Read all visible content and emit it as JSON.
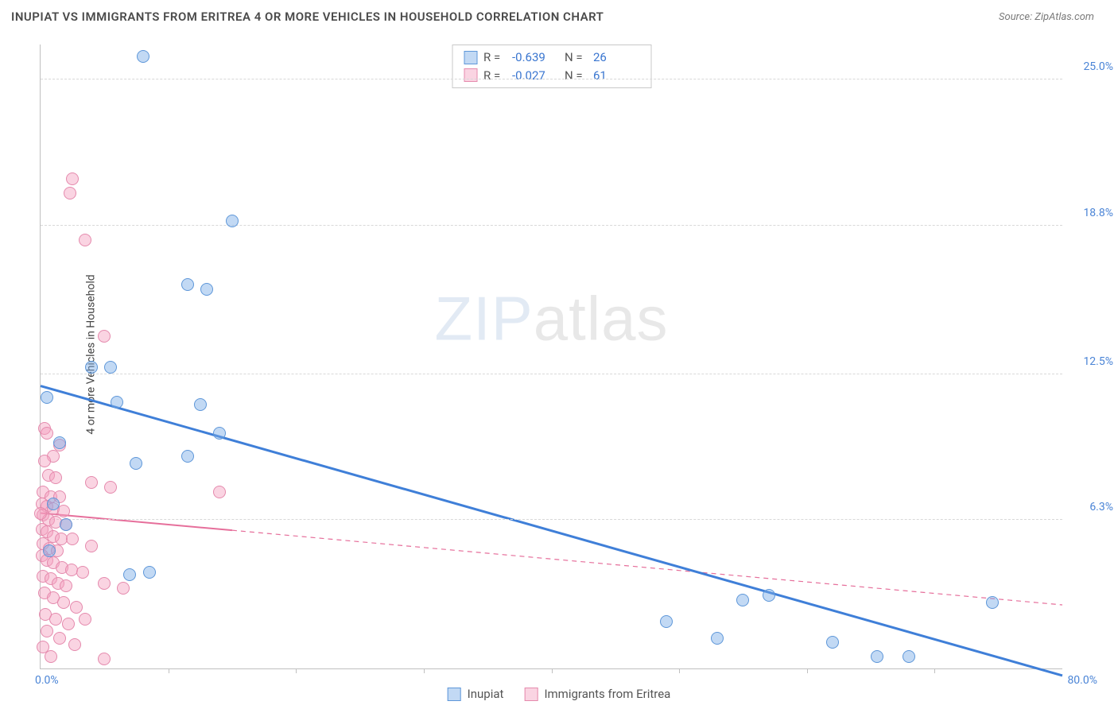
{
  "header": {
    "title": "INUPIAT VS IMMIGRANTS FROM ERITREA 4 OR MORE VEHICLES IN HOUSEHOLD CORRELATION CHART",
    "source": "Source: ZipAtlas.com"
  },
  "watermark": {
    "left": "ZIP",
    "right": "atlas"
  },
  "chart": {
    "type": "scatter",
    "ylabel": "4 or more Vehicles in Household",
    "xlim": [
      0,
      80
    ],
    "ylim": [
      0,
      26.5
    ],
    "x_ticks_label": {
      "min": "0.0%",
      "max": "80.0%"
    },
    "y_ticks": [
      {
        "v": 6.3,
        "label": "6.3%"
      },
      {
        "v": 12.5,
        "label": "12.5%"
      },
      {
        "v": 18.8,
        "label": "18.8%"
      },
      {
        "v": 25.0,
        "label": "25.0%"
      }
    ],
    "x_tick_marks": [
      10,
      20,
      30,
      40,
      50,
      60,
      70
    ],
    "grid_color": "#d8d8d8",
    "background_color": "#ffffff",
    "tick_label_color": "#4a84d6",
    "point_radius": 8,
    "series": {
      "blue": {
        "label": "Inupiat",
        "fill": "rgba(120,170,230,0.45)",
        "stroke": "#5e97d9",
        "R": "-0.639",
        "N": "26",
        "trend": {
          "x1": 0,
          "y1": 12.0,
          "x2": 80,
          "y2": -0.3,
          "solid_until_x": 80,
          "color": "#3f7fd8",
          "width": 3
        },
        "points": [
          {
            "x": 8.0,
            "y": 26.0
          },
          {
            "x": 15.0,
            "y": 19.0
          },
          {
            "x": 11.5,
            "y": 16.3
          },
          {
            "x": 13.0,
            "y": 16.1
          },
          {
            "x": 4.0,
            "y": 12.8
          },
          {
            "x": 5.5,
            "y": 12.8
          },
          {
            "x": 0.5,
            "y": 11.5
          },
          {
            "x": 6.0,
            "y": 11.3
          },
          {
            "x": 12.5,
            "y": 11.2
          },
          {
            "x": 14.0,
            "y": 10.0
          },
          {
            "x": 11.5,
            "y": 9.0
          },
          {
            "x": 7.5,
            "y": 8.7
          },
          {
            "x": 1.0,
            "y": 7.0
          },
          {
            "x": 2.0,
            "y": 6.1
          },
          {
            "x": 0.7,
            "y": 5.0
          },
          {
            "x": 7.0,
            "y": 4.0
          },
          {
            "x": 8.5,
            "y": 4.1
          },
          {
            "x": 49.0,
            "y": 2.0
          },
          {
            "x": 53.0,
            "y": 1.3
          },
          {
            "x": 55.0,
            "y": 2.9
          },
          {
            "x": 57.0,
            "y": 3.1
          },
          {
            "x": 62.0,
            "y": 1.1
          },
          {
            "x": 65.5,
            "y": 0.5
          },
          {
            "x": 68.0,
            "y": 0.5
          },
          {
            "x": 74.5,
            "y": 2.8
          },
          {
            "x": 1.5,
            "y": 9.6
          }
        ]
      },
      "pink": {
        "label": "Immigrants from Eritrea",
        "fill": "rgba(245,160,190,0.45)",
        "stroke": "#e58aad",
        "R": "-0.027",
        "N": "61",
        "trend": {
          "x1": 0,
          "y1": 6.6,
          "x2": 80,
          "y2": 2.7,
          "solid_until_x": 15,
          "color": "#e66f9b",
          "width": 2
        },
        "points": [
          {
            "x": 2.5,
            "y": 20.8
          },
          {
            "x": 2.3,
            "y": 20.2
          },
          {
            "x": 3.5,
            "y": 18.2
          },
          {
            "x": 5.0,
            "y": 14.1
          },
          {
            "x": 0.3,
            "y": 10.2
          },
          {
            "x": 0.5,
            "y": 10.0
          },
          {
            "x": 1.5,
            "y": 9.5
          },
          {
            "x": 1.0,
            "y": 9.0
          },
          {
            "x": 0.3,
            "y": 8.8
          },
          {
            "x": 0.6,
            "y": 8.2
          },
          {
            "x": 1.2,
            "y": 8.1
          },
          {
            "x": 4.0,
            "y": 7.9
          },
          {
            "x": 5.5,
            "y": 7.7
          },
          {
            "x": 0.2,
            "y": 7.5
          },
          {
            "x": 0.8,
            "y": 7.3
          },
          {
            "x": 1.5,
            "y": 7.3
          },
          {
            "x": 14.0,
            "y": 7.5
          },
          {
            "x": 0.1,
            "y": 7.0
          },
          {
            "x": 0.5,
            "y": 6.9
          },
          {
            "x": 1.0,
            "y": 6.8
          },
          {
            "x": 1.8,
            "y": 6.7
          },
          {
            "x": 0.2,
            "y": 6.5
          },
          {
            "x": 0.6,
            "y": 6.3
          },
          {
            "x": 1.2,
            "y": 6.2
          },
          {
            "x": 2.0,
            "y": 6.1
          },
          {
            "x": 0.1,
            "y": 5.9
          },
          {
            "x": 0.5,
            "y": 5.8
          },
          {
            "x": 1.0,
            "y": 5.6
          },
          {
            "x": 1.6,
            "y": 5.5
          },
          {
            "x": 2.5,
            "y": 5.5
          },
          {
            "x": 0.2,
            "y": 5.3
          },
          {
            "x": 0.7,
            "y": 5.1
          },
          {
            "x": 1.3,
            "y": 5.0
          },
          {
            "x": 0.1,
            "y": 4.8
          },
          {
            "x": 0.5,
            "y": 4.6
          },
          {
            "x": 1.0,
            "y": 4.5
          },
          {
            "x": 1.7,
            "y": 4.3
          },
          {
            "x": 2.4,
            "y": 4.2
          },
          {
            "x": 3.3,
            "y": 4.1
          },
          {
            "x": 0.2,
            "y": 3.9
          },
          {
            "x": 0.8,
            "y": 3.8
          },
          {
            "x": 1.4,
            "y": 3.6
          },
          {
            "x": 2.0,
            "y": 3.5
          },
          {
            "x": 5.0,
            "y": 3.6
          },
          {
            "x": 6.5,
            "y": 3.4
          },
          {
            "x": 0.3,
            "y": 3.2
          },
          {
            "x": 1.0,
            "y": 3.0
          },
          {
            "x": 1.8,
            "y": 2.8
          },
          {
            "x": 2.8,
            "y": 2.6
          },
          {
            "x": 0.4,
            "y": 2.3
          },
          {
            "x": 1.2,
            "y": 2.1
          },
          {
            "x": 2.2,
            "y": 1.9
          },
          {
            "x": 3.5,
            "y": 2.1
          },
          {
            "x": 0.5,
            "y": 1.6
          },
          {
            "x": 1.5,
            "y": 1.3
          },
          {
            "x": 2.7,
            "y": 1.0
          },
          {
            "x": 5.0,
            "y": 0.4
          },
          {
            "x": 0.2,
            "y": 0.9
          },
          {
            "x": 0.8,
            "y": 0.5
          },
          {
            "x": 4.0,
            "y": 5.2
          },
          {
            "x": 0.0,
            "y": 6.6
          }
        ]
      }
    }
  }
}
